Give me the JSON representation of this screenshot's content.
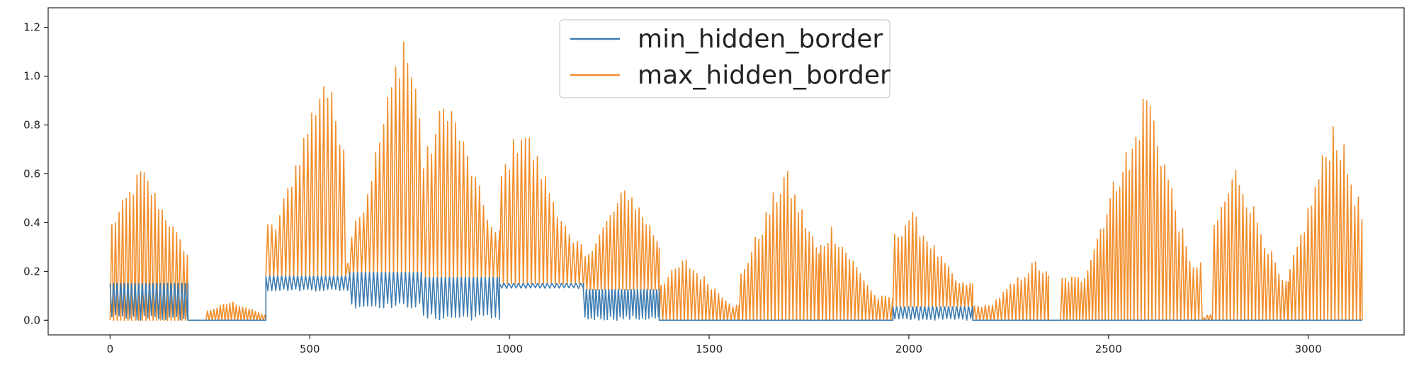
{
  "chart_data": {
    "type": "line",
    "title": "",
    "xlabel": "",
    "ylabel": "",
    "xlim": [
      -155,
      3240
    ],
    "ylim": [
      -0.06,
      1.28
    ],
    "xticks": [
      0,
      500,
      1000,
      1500,
      2000,
      2500,
      3000
    ],
    "yticks": [
      0.0,
      0.2,
      0.4,
      0.6,
      0.8,
      1.0,
      1.2
    ],
    "xtick_labels": [
      "0",
      "500",
      "1000",
      "1500",
      "2000",
      "2500",
      "3000"
    ],
    "ytick_labels": [
      "0.0",
      "0.2",
      "0.4",
      "0.6",
      "0.8",
      "1.0",
      "1.2"
    ],
    "grid": false,
    "legend_position": "upper-center",
    "x_range": [
      0,
      3135
    ],
    "series": [
      {
        "name": "min_hidden_border",
        "color": "#3e7cb1",
        "segments": [
          {
            "x0": 0,
            "x1": 195,
            "base": 0.15,
            "low": 0.0,
            "osc": "dips",
            "period": 9
          },
          {
            "x0": 195,
            "x1": 390,
            "base": 0.0,
            "low": 0.0,
            "osc": "none",
            "period": 20
          },
          {
            "x0": 390,
            "x1": 600,
            "base": 0.18,
            "low": 0.12,
            "osc": "dips",
            "period": 10
          },
          {
            "x0": 600,
            "x1": 780,
            "base": 0.195,
            "low": 0.05,
            "osc": "dips",
            "period": 10
          },
          {
            "x0": 780,
            "x1": 975,
            "base": 0.175,
            "low": 0.0,
            "osc": "dips",
            "period": 10
          },
          {
            "x0": 975,
            "x1": 1185,
            "base": 0.15,
            "low": 0.13,
            "osc": "dips",
            "period": 12
          },
          {
            "x0": 1185,
            "x1": 1375,
            "base": 0.125,
            "low": 0.0,
            "osc": "dips",
            "period": 8
          },
          {
            "x0": 1375,
            "x1": 1960,
            "base": 0.0,
            "low": 0.0,
            "osc": "none",
            "period": 20
          },
          {
            "x0": 1960,
            "x1": 2160,
            "base": 0.055,
            "low": 0.0,
            "osc": "dips",
            "period": 10
          },
          {
            "x0": 2160,
            "x1": 3135,
            "base": 0.0,
            "low": 0.0,
            "osc": "none",
            "period": 20
          }
        ]
      },
      {
        "name": "max_hidden_border",
        "color": "#f28e2b",
        "segments": [
          {
            "x0": 0,
            "x1": 195,
            "base": 0.15,
            "low": 0.0,
            "peak": 0.64,
            "peak_at": 0.38,
            "period": 9
          },
          {
            "x0": 195,
            "x1": 240,
            "base": 0.0,
            "low": 0.0,
            "peak": 0.0,
            "peak_at": 0.5,
            "period": 20
          },
          {
            "x0": 240,
            "x1": 390,
            "base": 0.0,
            "low": 0.0,
            "peak": 0.08,
            "peak_at": 0.4,
            "period": 8
          },
          {
            "x0": 390,
            "x1": 590,
            "base": 0.18,
            "low": 0.18,
            "peak": 1.05,
            "peak_at": 0.7,
            "period": 10
          },
          {
            "x0": 590,
            "x1": 610,
            "base": 0.18,
            "low": 0.18,
            "peak": 0.35,
            "peak_at": 0.5,
            "period": 10
          },
          {
            "x0": 610,
            "x1": 780,
            "base": 0.195,
            "low": 0.195,
            "peak": 1.23,
            "peak_at": 0.7,
            "period": 10
          },
          {
            "x0": 780,
            "x1": 975,
            "base": 0.175,
            "low": 0.175,
            "peak": 0.96,
            "peak_at": 0.3,
            "period": 10
          },
          {
            "x0": 975,
            "x1": 1185,
            "base": 0.15,
            "low": 0.15,
            "peak": 0.84,
            "peak_at": 0.25,
            "period": 10
          },
          {
            "x0": 1185,
            "x1": 1375,
            "base": 0.125,
            "low": 0.125,
            "peak": 0.57,
            "peak_at": 0.55,
            "period": 9
          },
          {
            "x0": 1375,
            "x1": 1575,
            "base": 0.0,
            "low": 0.0,
            "peak": 0.26,
            "peak_at": 0.3,
            "period": 9
          },
          {
            "x0": 1575,
            "x1": 1775,
            "base": 0.0,
            "low": 0.0,
            "peak": 0.64,
            "peak_at": 0.55,
            "period": 9
          },
          {
            "x0": 1775,
            "x1": 1960,
            "base": 0.0,
            "low": 0.0,
            "peak": 0.4,
            "peak_at": 0.15,
            "period": 9
          },
          {
            "x0": 1960,
            "x1": 2160,
            "base": 0.055,
            "low": 0.055,
            "peak": 0.46,
            "peak_at": 0.2,
            "period": 9
          },
          {
            "x0": 2160,
            "x1": 2350,
            "base": 0.0,
            "low": 0.0,
            "peak": 0.25,
            "peak_at": 0.8,
            "period": 9
          },
          {
            "x0": 2350,
            "x1": 2380,
            "base": 0.0,
            "low": 0.0,
            "peak": 0.0,
            "peak_at": 0.5,
            "period": 20
          },
          {
            "x0": 2380,
            "x1": 2555,
            "base": 0.0,
            "low": 0.0,
            "peak": 0.73,
            "peak_at": 0.9,
            "period": 8
          },
          {
            "x0": 2555,
            "x1": 2735,
            "base": 0.0,
            "low": 0.0,
            "peak": 1.0,
            "peak_at": 0.2,
            "period": 9
          },
          {
            "x0": 2735,
            "x1": 2760,
            "base": 0.0,
            "low": 0.0,
            "peak": 0.03,
            "peak_at": 0.5,
            "period": 8
          },
          {
            "x0": 2760,
            "x1": 2950,
            "base": 0.0,
            "low": 0.0,
            "peak": 0.66,
            "peak_at": 0.3,
            "period": 9
          },
          {
            "x0": 2950,
            "x1": 3135,
            "base": 0.0,
            "low": 0.0,
            "peak": 0.86,
            "peak_at": 0.6,
            "period": 9
          }
        ]
      }
    ]
  }
}
